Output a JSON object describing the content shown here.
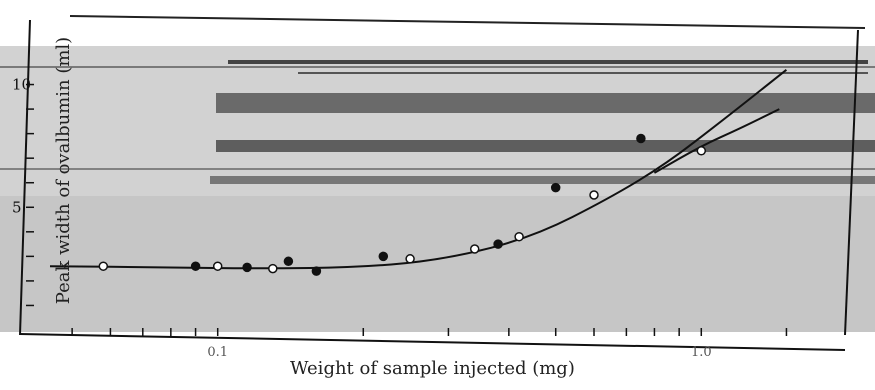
{
  "chart_data": {
    "type": "scatter",
    "title": "",
    "xlabel": "Weight of sample injected (mg)",
    "ylabel": "Peak width of ovalbumin (ml)",
    "x_scale": "log",
    "xlim": [
      0.045,
      1.6
    ],
    "ylim": [
      0,
      11
    ],
    "x_tick_labels": [
      "0.1",
      "1.0"
    ],
    "y_tick_labels": [
      "10",
      "5"
    ],
    "grid": false,
    "series": [
      {
        "marker": "open-circle",
        "x": [
          0.058,
          0.1,
          0.13,
          0.25,
          0.34,
          0.42,
          0.6,
          1.0
        ],
        "y": [
          2.6,
          2.6,
          2.5,
          2.9,
          3.3,
          3.8,
          5.5,
          7.3
        ]
      },
      {
        "marker": "filled-circle",
        "x": [
          0.09,
          0.115,
          0.14,
          0.16,
          0.22,
          0.38,
          0.5,
          0.75
        ],
        "y": [
          2.6,
          2.55,
          2.8,
          2.4,
          3.0,
          3.5,
          5.8,
          7.8
        ]
      }
    ],
    "fit_curves": [
      {
        "name": "",
        "x": [
          0.045,
          0.08,
          0.12,
          0.2,
          0.3,
          0.45,
          0.65,
          0.85,
          1.1,
          1.5
        ],
        "y": [
          2.6,
          2.55,
          2.5,
          2.55,
          2.9,
          3.8,
          5.4,
          6.8,
          8.5,
          10.6
        ]
      },
      {
        "name": "",
        "x": [
          0.8,
          1.0,
          1.2,
          1.45
        ],
        "y": [
          6.4,
          7.5,
          8.2,
          9.0
        ]
      }
    ],
    "colors": {
      "background": "#ffffff",
      "panel": "#c9c9c9",
      "ink": "#111111",
      "stripe": "#555555"
    }
  }
}
